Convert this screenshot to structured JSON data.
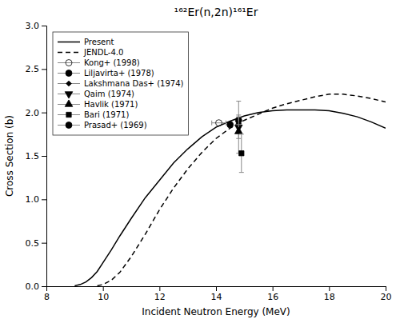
{
  "chart_data": {
    "type": "line",
    "title": "¹⁶²Er(n,2n)¹⁶¹Er",
    "xlabel": "Incident Neutron Energy (MeV)",
    "ylabel": "Cross Section (b)",
    "xlim": [
      8,
      20
    ],
    "ylim": [
      0.0,
      3.0
    ],
    "xticks": [
      8,
      10,
      12,
      14,
      16,
      18,
      20
    ],
    "yticks": [
      {
        "value": 0.0,
        "label": "0.0"
      },
      0.5,
      {
        "value": 1.0,
        "label": "1.0"
      },
      1.5,
      {
        "value": 2.0,
        "label": "2.0"
      },
      2.5,
      {
        "value": 3.0,
        "label": "3.0"
      }
    ],
    "grid": false,
    "legend": "upper-left",
    "series": [
      {
        "name": "Present",
        "type": "line",
        "color": "black",
        "line_style": "solid",
        "x": [
          9.0,
          9.2,
          9.4,
          9.6,
          9.8,
          10.0,
          10.3,
          10.6,
          11.0,
          11.5,
          12.0,
          12.5,
          13.0,
          13.5,
          14.0,
          14.5,
          15.0,
          15.5,
          16.0,
          16.5,
          17.0,
          17.5,
          18.0,
          18.5,
          19.0,
          19.5,
          20.0
        ],
        "values": [
          0.005,
          0.02,
          0.05,
          0.1,
          0.17,
          0.27,
          0.42,
          0.58,
          0.78,
          1.02,
          1.22,
          1.42,
          1.58,
          1.72,
          1.83,
          1.9,
          1.96,
          2.0,
          2.02,
          2.03,
          2.03,
          2.03,
          2.02,
          1.99,
          1.95,
          1.89,
          1.82
        ]
      },
      {
        "name": "JENDL-4.0",
        "type": "line",
        "color": "black",
        "line_style": "dashed",
        "x": [
          9.8,
          10.0,
          10.3,
          10.6,
          11.0,
          11.5,
          12.0,
          12.5,
          13.0,
          13.5,
          14.0,
          14.5,
          15.0,
          15.5,
          16.0,
          16.5,
          17.0,
          17.5,
          18.0,
          18.5,
          19.0,
          19.5,
          20.0
        ],
        "values": [
          0.005,
          0.02,
          0.07,
          0.16,
          0.34,
          0.6,
          0.88,
          1.13,
          1.35,
          1.54,
          1.7,
          1.82,
          1.91,
          1.98,
          2.05,
          2.1,
          2.14,
          2.18,
          2.21,
          2.21,
          2.19,
          2.16,
          2.12
        ]
      },
      {
        "name": "Kong+ (1998)",
        "type": "scatter",
        "color": "black",
        "marker": "circle-open",
        "x": [
          14.1
        ],
        "values": [
          1.88
        ],
        "x_errors": [
          0.25
        ]
      },
      {
        "name": "Liljavirta+ (1978)",
        "type": "scatter",
        "color": "black",
        "marker": "circle",
        "x": [
          14.8
        ],
        "values": [
          1.91
        ],
        "errors": [
          0.06
        ]
      },
      {
        "name": "Lakshmana Das+ (1974)",
        "type": "scatter",
        "color": "black",
        "marker": "diamond",
        "x": [
          14.8
        ],
        "values": [
          1.87
        ],
        "errors": [
          0.08
        ]
      },
      {
        "name": "Qaim (1974)",
        "type": "scatter",
        "color": "black",
        "marker": "triangle-down",
        "x": [
          14.8
        ],
        "values": [
          1.83
        ],
        "errors": [
          0.3
        ]
      },
      {
        "name": "Havlik (1971)",
        "type": "scatter",
        "color": "black",
        "marker": "triangle-up",
        "x": [
          14.8
        ],
        "values": [
          1.78
        ],
        "errors": [
          0.08
        ]
      },
      {
        "name": "Bari (1971)",
        "type": "scatter",
        "color": "black",
        "marker": "square",
        "x": [
          14.9
        ],
        "values": [
          1.53
        ],
        "errors": [
          0.22
        ]
      },
      {
        "name": "Prasad+ (1969)",
        "type": "scatter",
        "color": "black",
        "marker": "circle",
        "x": [
          14.5
        ],
        "values": [
          1.86
        ]
      }
    ]
  }
}
